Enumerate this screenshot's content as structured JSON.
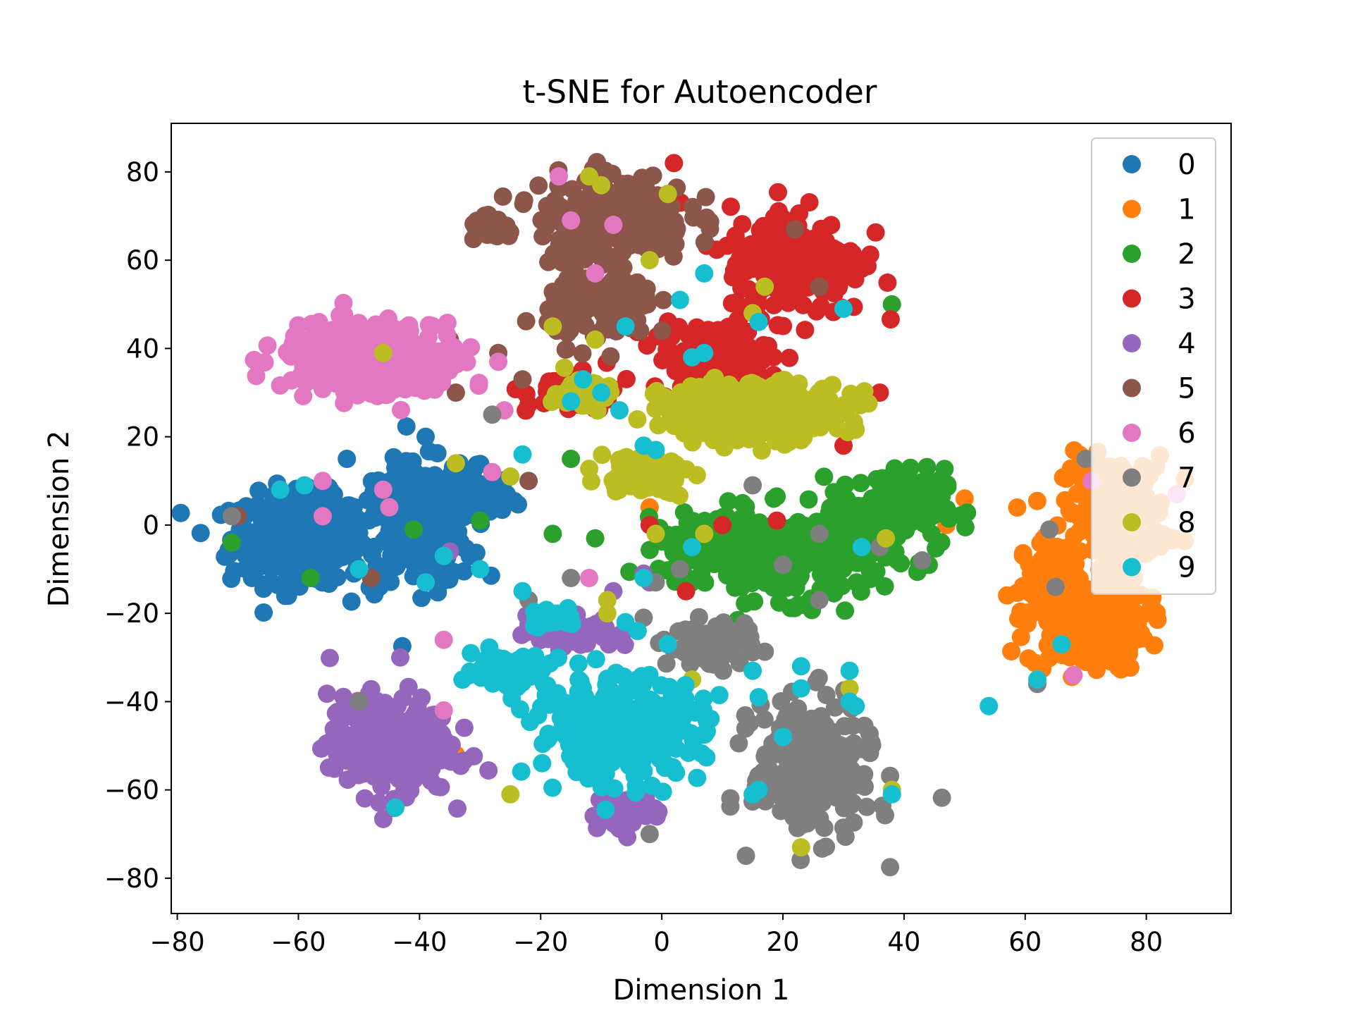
{
  "chart_data": {
    "type": "scatter",
    "title": "t-SNE for Autoencoder",
    "xlabel": "Dimension 1",
    "ylabel": "Dimension 2",
    "xlim": [
      -81,
      94
    ],
    "ylim": [
      -88,
      91
    ],
    "xticks": [
      -80,
      -60,
      -40,
      -20,
      0,
      20,
      40,
      60,
      80
    ],
    "xtick_labels": [
      "−80",
      "−60",
      "−40",
      "−20",
      "0",
      "20",
      "40",
      "60",
      "80"
    ],
    "yticks": [
      -80,
      -60,
      -40,
      -20,
      0,
      20,
      40,
      60,
      80
    ],
    "ytick_labels": [
      "−80",
      "−60",
      "−40",
      "−20",
      "0",
      "20",
      "40",
      "60",
      "80"
    ],
    "grid": false,
    "legend_position": "top-right",
    "series": [
      {
        "name": "0",
        "color": "#1f77b4",
        "clusters": [
          [
            -60,
            -3,
            9,
            8,
            340
          ],
          [
            -40,
            0,
            8,
            11,
            260
          ],
          [
            -33,
            7,
            7,
            6,
            90
          ]
        ],
        "points": [
          [
            -71,
            -4
          ],
          [
            -52,
            15
          ],
          [
            -44,
            13
          ],
          [
            -39,
            20
          ]
        ]
      },
      {
        "name": "1",
        "color": "#ff7f0e",
        "clusters": [
          [
            70,
            -22,
            8,
            9,
            220
          ],
          [
            75,
            3,
            7,
            10,
            180
          ],
          [
            64,
            -10,
            4,
            5,
            40
          ]
        ],
        "points": [
          [
            50,
            6
          ],
          [
            47,
            0
          ],
          [
            -2,
            4
          ],
          [
            -34,
            -52
          ]
        ]
      },
      {
        "name": "2",
        "color": "#2ca02c",
        "clusters": [
          [
            22,
            -7,
            12,
            8,
            300
          ],
          [
            38,
            4,
            7,
            7,
            160
          ],
          [
            7,
            -5,
            6,
            6,
            60
          ]
        ],
        "points": [
          [
            -41,
            -1
          ],
          [
            -30,
            1
          ],
          [
            -58,
            -12
          ],
          [
            -71,
            -4
          ],
          [
            -18,
            -2
          ],
          [
            -11,
            -3
          ],
          [
            -15,
            15
          ],
          [
            38,
            50
          ]
        ]
      },
      {
        "name": "3",
        "color": "#d62728",
        "clusters": [
          [
            22,
            60,
            9,
            10,
            230
          ],
          [
            8,
            38,
            8,
            6,
            130
          ],
          [
            -15,
            30,
            6,
            4,
            50
          ]
        ],
        "points": [
          [
            2,
            82
          ],
          [
            10,
            0
          ],
          [
            19,
            1
          ],
          [
            -2,
            0
          ],
          [
            4,
            -15
          ],
          [
            30,
            18
          ],
          [
            36,
            30
          ]
        ]
      },
      {
        "name": "4",
        "color": "#9467bd",
        "clusters": [
          [
            -45,
            -50,
            8,
            9,
            280
          ],
          [
            -15,
            -24,
            6,
            3,
            80
          ],
          [
            -6,
            -65,
            5,
            3,
            50
          ]
        ],
        "points": [
          [
            -35,
            -6
          ],
          [
            -3,
            -11
          ],
          [
            -2,
            -13
          ],
          [
            -8,
            -15
          ]
        ]
      },
      {
        "name": "5",
        "color": "#8c564b",
        "clusters": [
          [
            -8,
            70,
            10,
            8,
            220
          ],
          [
            -10,
            50,
            7,
            7,
            130
          ],
          [
            -28,
            67,
            3,
            2,
            30
          ]
        ],
        "points": [
          [
            -48,
            -12
          ],
          [
            -70,
            2
          ],
          [
            -35,
            42
          ],
          [
            -34,
            30
          ],
          [
            -27,
            39
          ],
          [
            -22,
            10
          ],
          [
            -23,
            33
          ],
          [
            22,
            67
          ],
          [
            26,
            54
          ]
        ]
      },
      {
        "name": "6",
        "color": "#e377c2",
        "clusters": [
          [
            -50,
            38,
            10,
            6,
            300
          ],
          [
            -42,
            35,
            7,
            6,
            80
          ]
        ],
        "points": [
          [
            -45,
            4
          ],
          [
            -46,
            8
          ],
          [
            -56,
            2
          ],
          [
            -56,
            10
          ],
          [
            -36,
            -26
          ],
          [
            -36,
            -42
          ],
          [
            -27,
            37
          ],
          [
            -26,
            26
          ],
          [
            -28,
            12
          ],
          [
            -17,
            79
          ],
          [
            -15,
            69
          ],
          [
            -11,
            57
          ],
          [
            -8,
            68
          ],
          [
            68,
            -34
          ],
          [
            71,
            10
          ],
          [
            85,
            7
          ],
          [
            -12,
            -12
          ]
        ]
      },
      {
        "name": "7",
        "color": "#7f7f7f",
        "clusters": [
          [
            25,
            -55,
            8,
            12,
            260
          ],
          [
            8,
            -27,
            6,
            4,
            70
          ]
        ],
        "points": [
          [
            -71,
            2
          ],
          [
            -50,
            -40
          ],
          [
            -28,
            25
          ],
          [
            -15,
            -12
          ],
          [
            -22,
            -17
          ],
          [
            -3,
            -21
          ],
          [
            -1,
            -13
          ],
          [
            3,
            -10
          ],
          [
            26,
            -17
          ],
          [
            36,
            -5
          ],
          [
            43,
            -8
          ],
          [
            26,
            -2
          ],
          [
            20,
            -9
          ],
          [
            64,
            -1
          ],
          [
            65,
            -14
          ],
          [
            62,
            -36
          ],
          [
            70,
            15
          ],
          [
            15,
            9
          ],
          [
            -2,
            -70
          ]
        ]
      },
      {
        "name": "8",
        "color": "#bcbd22",
        "clusters": [
          [
            15,
            26,
            12,
            5,
            360
          ],
          [
            -3,
            12,
            6,
            4,
            70
          ],
          [
            -13,
            30,
            4,
            3,
            40
          ]
        ],
        "points": [
          [
            -46,
            39
          ],
          [
            -34,
            14
          ],
          [
            -25,
            11
          ],
          [
            -12,
            79
          ],
          [
            -10,
            77
          ],
          [
            1,
            75
          ],
          [
            -2,
            60
          ],
          [
            -18,
            45
          ],
          [
            -11,
            42
          ],
          [
            17,
            54
          ],
          [
            15,
            48
          ],
          [
            -9,
            -17
          ],
          [
            -9,
            -20
          ],
          [
            7,
            -2
          ],
          [
            -1,
            -2
          ],
          [
            37,
            -3
          ],
          [
            23,
            -73
          ],
          [
            38,
            -60
          ],
          [
            5,
            -35
          ],
          [
            -25,
            -61
          ],
          [
            31,
            -37
          ]
        ]
      },
      {
        "name": "9",
        "color": "#17becf",
        "clusters": [
          [
            -7,
            -46,
            11,
            9,
            320
          ],
          [
            -25,
            -33,
            5,
            3,
            80
          ],
          [
            -18,
            -21,
            3,
            2,
            30
          ]
        ],
        "points": [
          [
            -63,
            8
          ],
          [
            -59,
            9
          ],
          [
            -50,
            -10
          ],
          [
            -39,
            -13
          ],
          [
            -36,
            -7
          ],
          [
            -30,
            -10
          ],
          [
            -23,
            16
          ],
          [
            -23,
            -15
          ],
          [
            -15,
            28
          ],
          [
            -13,
            33
          ],
          [
            -10,
            30
          ],
          [
            -7,
            26
          ],
          [
            -6,
            45
          ],
          [
            -3,
            18
          ],
          [
            -1,
            17
          ],
          [
            -3,
            -12
          ],
          [
            -6,
            -22
          ],
          [
            -4,
            -24
          ],
          [
            1,
            -27
          ],
          [
            3,
            51
          ],
          [
            5,
            38
          ],
          [
            7,
            39
          ],
          [
            7,
            57
          ],
          [
            16,
            46
          ],
          [
            30,
            49
          ],
          [
            5,
            -5
          ],
          [
            33,
            -5
          ],
          [
            15,
            -33
          ],
          [
            16,
            -39
          ],
          [
            20,
            -48
          ],
          [
            23,
            -32
          ],
          [
            23,
            -37
          ],
          [
            15,
            -61
          ],
          [
            16,
            -60
          ],
          [
            31,
            -33
          ],
          [
            31,
            -40
          ],
          [
            32,
            -41
          ],
          [
            38,
            -61
          ],
          [
            54,
            -41
          ],
          [
            62,
            -35
          ],
          [
            66,
            -27
          ],
          [
            -44,
            -64
          ]
        ]
      }
    ]
  }
}
